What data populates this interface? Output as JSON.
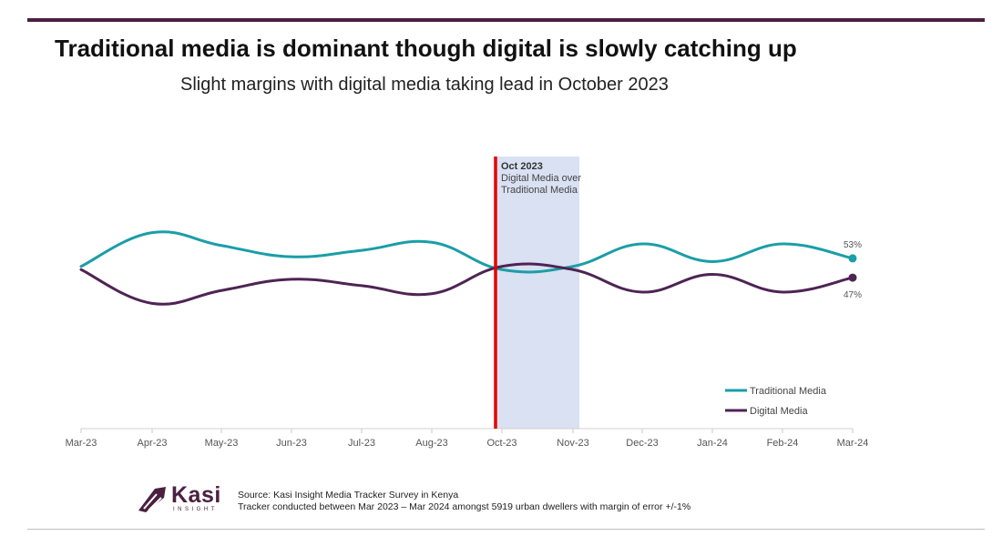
{
  "title": "Traditional media is dominant though digital is slowly catching up",
  "subtitle": "Slight margins with digital media taking lead in October 2023",
  "chart_data": {
    "type": "line",
    "categories": [
      "Mar-23",
      "Apr-23",
      "May-23",
      "Jun-23",
      "Jul-23",
      "Aug-23",
      "Oct-23",
      "Nov-23",
      "Dec-23",
      "Jan-24",
      "Feb-24",
      "Mar-24"
    ],
    "ylim": [
      0,
      100
    ],
    "series": [
      {
        "name": "Traditional Media",
        "color": "#1a9ea8",
        "values": [
          50.5,
          61,
          57,
          53.5,
          55.5,
          58,
          49.5,
          50.5,
          57.5,
          52,
          57.5,
          53
        ]
      },
      {
        "name": "Digital Media",
        "color": "#4e2454",
        "values": [
          49.5,
          39,
          43,
          46.5,
          44.5,
          42,
          50.5,
          49.5,
          42.5,
          48,
          42.5,
          47
        ]
      }
    ],
    "end_labels": {
      "traditional": "53%",
      "digital": "47%"
    },
    "annotation": {
      "category_index": 6,
      "heading": "Oct 2023",
      "lines": [
        "Digital Media over",
        "Traditional Media"
      ],
      "line_color": "#e60000",
      "band_color": "#d9e1f2"
    },
    "legend_position": "bottom-right"
  },
  "footer": {
    "logo_text": "Kasi",
    "logo_subtext": "INSIGHT",
    "source": "Source: Kasi Insight Media Tracker Survey in Kenya",
    "note": "Tracker conducted between Mar 2023 – Mar 2024 amongst 5919 urban dwellers with margin of error +/-1%"
  },
  "colors": {
    "brand": "#4a2040",
    "traditional": "#1a9ea8",
    "digital": "#4e2454"
  }
}
